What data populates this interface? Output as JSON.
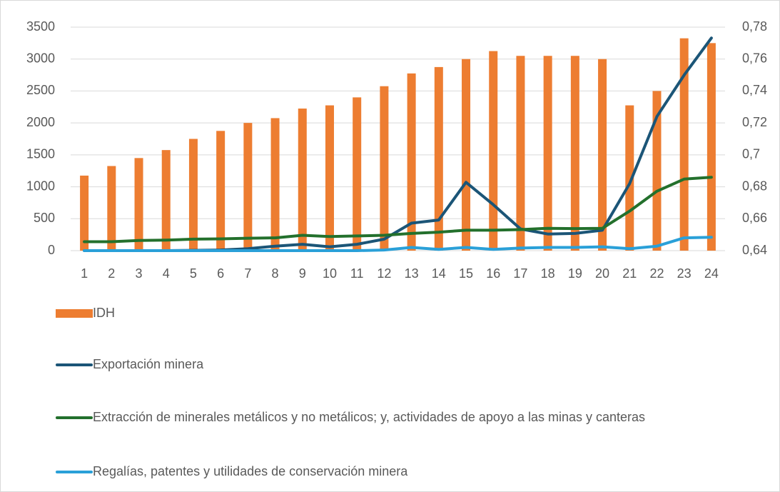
{
  "chart_data": {
    "type": "bar-line",
    "categories": [
      "1",
      "2",
      "3",
      "4",
      "5",
      "6",
      "7",
      "8",
      "9",
      "10",
      "11",
      "12",
      "13",
      "14",
      "15",
      "16",
      "17",
      "18",
      "19",
      "20",
      "21",
      "22",
      "23",
      "24"
    ],
    "ylim": [
      0,
      3500
    ],
    "yticks": [
      0,
      500,
      1000,
      1500,
      2000,
      2500,
      3000,
      3500
    ],
    "y2lim": [
      0.64,
      0.78
    ],
    "y2ticks": [
      {
        "value": 0.64,
        "label": "0,64"
      },
      {
        "value": 0.66,
        "label": "0,66"
      },
      {
        "value": 0.68,
        "label": "0,68"
      },
      {
        "value": 0.7,
        "label": "0,7"
      },
      {
        "value": 0.72,
        "label": "0,72"
      },
      {
        "value": 0.74,
        "label": "0,74"
      },
      {
        "value": 0.76,
        "label": "0,76"
      },
      {
        "value": 0.78,
        "label": "0,78"
      }
    ],
    "series": [
      {
        "name": "IDH",
        "type": "bar",
        "axis": "y2",
        "color": "#ed7d31",
        "values": [
          0.687,
          0.693,
          0.698,
          0.703,
          0.71,
          0.715,
          0.72,
          0.723,
          0.729,
          0.731,
          0.736,
          0.743,
          0.751,
          0.755,
          0.76,
          0.765,
          0.762,
          0.762,
          0.762,
          0.76,
          0.731,
          0.74,
          0.773,
          0.77
        ]
      },
      {
        "name": "Exportación minera",
        "type": "line",
        "color": "#1b5577",
        "values": [
          0,
          0,
          0,
          0,
          5,
          10,
          30,
          70,
          100,
          60,
          100,
          180,
          430,
          480,
          1070,
          720,
          340,
          260,
          270,
          320,
          1050,
          2100,
          2750,
          3330
        ]
      },
      {
        "name": "Extracción de minerales metálicos y no metálicos; y, actividades de apoyo a las minas y canteras",
        "type": "line",
        "color": "#23702c",
        "values": [
          140,
          140,
          160,
          165,
          180,
          185,
          195,
          200,
          240,
          220,
          230,
          240,
          270,
          290,
          320,
          320,
          330,
          350,
          345,
          350,
          620,
          930,
          1120,
          1150
        ]
      },
      {
        "name": "Regalías, patentes y utilidades de conservación minera",
        "type": "line",
        "color": "#2aa0d8",
        "values": [
          0,
          0,
          0,
          0,
          0,
          0,
          0,
          0,
          0,
          0,
          0,
          10,
          50,
          20,
          50,
          20,
          40,
          50,
          50,
          60,
          30,
          70,
          200,
          210
        ]
      }
    ]
  }
}
